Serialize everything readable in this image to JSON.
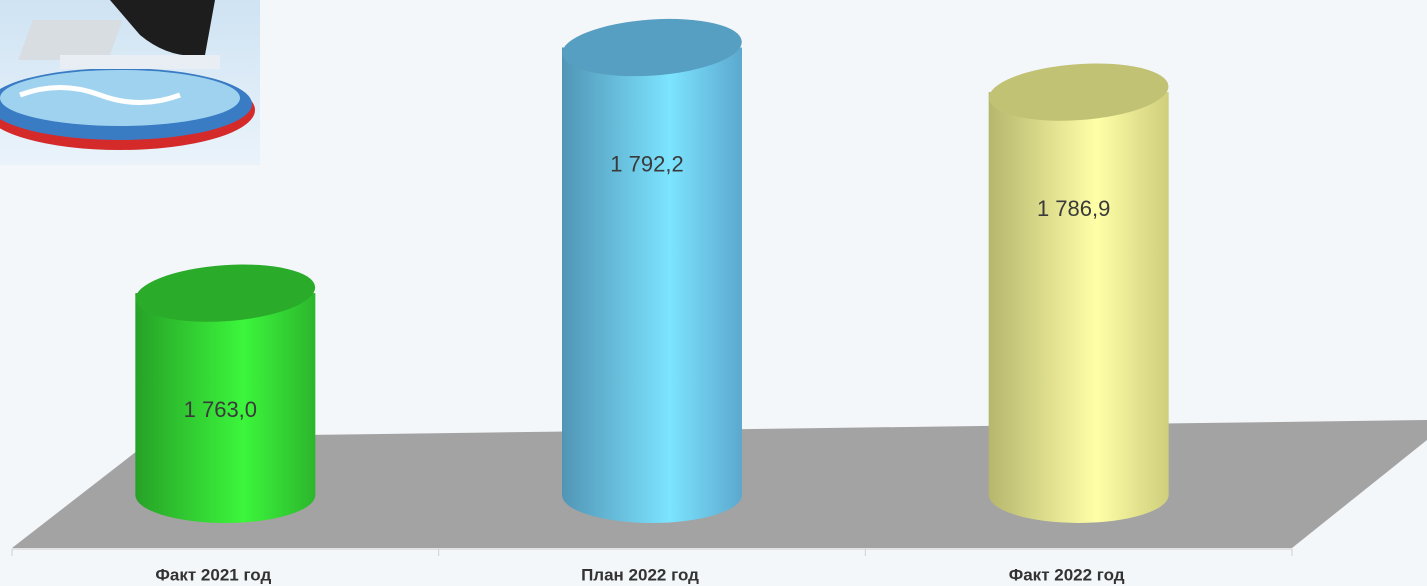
{
  "chart_data": {
    "type": "bar",
    "categories": [
      "Факт 2021 год",
      "План 2022 год",
      "Факт 2022 год"
    ],
    "values": [
      1763.0,
      1792.2,
      1786.9
    ],
    "value_labels": [
      "1 763,0",
      "1 792,2",
      "1 786,9"
    ],
    "colors": [
      "#34d634",
      "#6cc6f2",
      "#f2f292"
    ],
    "ylim": [
      1739,
      1795
    ]
  }
}
